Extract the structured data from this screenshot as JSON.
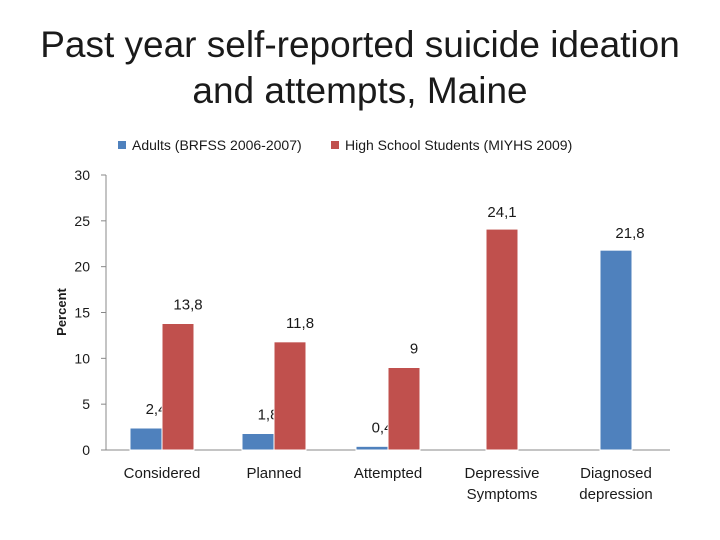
{
  "chart_data": {
    "type": "bar",
    "title_lines": [
      "Past year self-reported suicide ideation",
      "and attempts, Maine"
    ],
    "xlabel": "",
    "ylabel": "Percent",
    "ylim": [
      0,
      30
    ],
    "yticks": [
      0,
      5,
      10,
      15,
      20,
      25,
      30
    ],
    "grid": false,
    "legend_position": "top",
    "categories": [
      [
        "Considered"
      ],
      [
        "Planned"
      ],
      [
        "Attempted"
      ],
      [
        "Depressive",
        "Symptoms"
      ],
      [
        "Diagnosed",
        "depression"
      ]
    ],
    "series": [
      {
        "name": "Adults (BRFSS 2006-2007)",
        "color": "#4f81bd",
        "values": [
          2.4,
          1.8,
          0.4,
          null,
          21.8
        ],
        "labels": [
          "2,4",
          "1,8",
          "0,4",
          "",
          "21,8"
        ]
      },
      {
        "name": "High School Students (MIYHS 2009)",
        "color": "#c0504d",
        "values": [
          13.8,
          11.8,
          9,
          24.1,
          null
        ],
        "labels": [
          "13,8",
          "11,8",
          "9",
          "24,1",
          ""
        ]
      }
    ]
  }
}
